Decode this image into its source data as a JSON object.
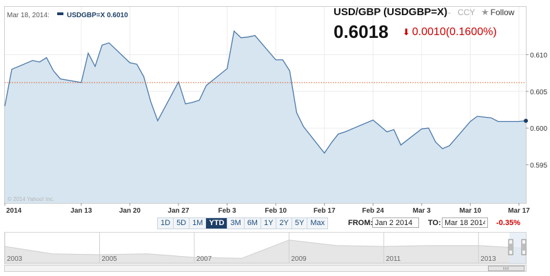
{
  "legend": {
    "date": "Mar 18, 2014:",
    "series": "USDGBP=X 0.6010"
  },
  "quote": {
    "name": "USD/GBP (USDGBP=X)",
    "separator": "-",
    "type": "CCY",
    "follow_label": "Follow",
    "price": "0.6018",
    "change": "0.0010(0.1600%)",
    "change_direction": "down",
    "change_color": "#cc0000"
  },
  "ranges": {
    "buttons": [
      "1D",
      "5D",
      "1M",
      "YTD",
      "3M",
      "6M",
      "1Y",
      "2Y",
      "5Y",
      "Max"
    ],
    "active": "YTD"
  },
  "date_range": {
    "from_label": "FROM:",
    "from_value": "Jan 2 2014",
    "to_label": "TO:",
    "to_value": "Mar 18 2014",
    "period_change": "-0.35%"
  },
  "copyright": "© 2014 Yahoo! Inc.",
  "navigator": {
    "years": [
      "2003",
      "2005",
      "2007",
      "2009",
      "2011",
      "2013"
    ]
  },
  "colors": {
    "line": "#4a77a6",
    "fill": "#d6e5f0",
    "reference_line": "#d9531e",
    "negative": "#cc0000",
    "legend_series": "#1e3f66"
  },
  "chart_data": {
    "type": "area",
    "title": "USD/GBP (USDGBP=X)",
    "xlabel": "",
    "ylabel": "",
    "x_ticks": [
      "2014",
      "Jan 13",
      "Jan 20",
      "Jan 27",
      "Feb 3",
      "Feb 10",
      "Feb 17",
      "Feb 24",
      "Mar 3",
      "Mar 10",
      "Mar 17"
    ],
    "y_ticks": [
      "0.610",
      "0.605",
      "0.600",
      "0.595"
    ],
    "ylim": [
      0.5898,
      0.6165
    ],
    "grid": true,
    "reference_value": 0.6062,
    "series": [
      {
        "x": [
          "2014-01-02",
          "2014-01-03",
          "2014-01-06",
          "2014-01-07",
          "2014-01-08",
          "2014-01-09",
          "2014-01-10",
          "2014-01-13",
          "2014-01-14",
          "2014-01-15",
          "2014-01-16",
          "2014-01-17",
          "2014-01-20",
          "2014-01-21",
          "2014-01-22",
          "2014-01-23",
          "2014-01-24",
          "2014-01-27",
          "2014-01-28",
          "2014-01-29",
          "2014-01-30",
          "2014-01-31",
          "2014-02-03",
          "2014-02-04",
          "2014-02-05",
          "2014-02-06",
          "2014-02-07",
          "2014-02-10",
          "2014-02-11",
          "2014-02-12",
          "2014-02-13",
          "2014-02-14",
          "2014-02-17",
          "2014-02-18",
          "2014-02-19",
          "2014-02-20",
          "2014-02-21",
          "2014-02-24",
          "2014-02-25",
          "2014-02-26",
          "2014-02-27",
          "2014-02-28",
          "2014-03-03",
          "2014-03-04",
          "2014-03-05",
          "2014-03-06",
          "2014-03-07",
          "2014-03-10",
          "2014-03-11",
          "2014-03-12",
          "2014-03-13",
          "2014-03-14",
          "2014-03-17",
          "2014-03-18"
        ],
        "values": [
          0.603,
          0.608,
          0.6092,
          0.609,
          0.6096,
          0.6078,
          0.6067,
          0.6062,
          0.6102,
          0.6084,
          0.6113,
          0.6116,
          0.6089,
          0.6087,
          0.607,
          0.6036,
          0.601,
          0.6063,
          0.6033,
          0.6035,
          0.6038,
          0.6058,
          0.6081,
          0.6132,
          0.6123,
          0.6124,
          0.6126,
          0.6093,
          0.6093,
          0.6078,
          0.6021,
          0.6002,
          0.5966,
          0.598,
          0.5992,
          0.5995,
          0.5999,
          0.6011,
          0.6003,
          0.5995,
          0.5998,
          0.5977,
          0.5999,
          0.6,
          0.5981,
          0.5972,
          0.5976,
          0.6009,
          0.6016,
          0.6015,
          0.6014,
          0.6009,
          0.6009,
          0.601
        ]
      }
    ],
    "navigator": {
      "x": [
        "2003",
        "2004",
        "2005",
        "2006",
        "2007",
        "2008",
        "2009",
        "2010",
        "2011",
        "2012",
        "2013",
        "2014"
      ],
      "values": [
        0.63,
        0.55,
        0.54,
        0.55,
        0.51,
        0.5,
        0.7,
        0.64,
        0.63,
        0.64,
        0.64,
        0.61
      ]
    }
  }
}
